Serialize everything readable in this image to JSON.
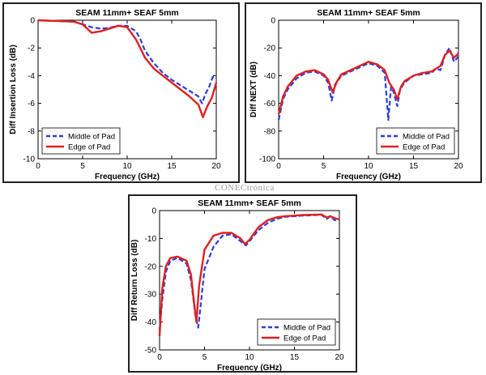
{
  "watermark": "CONECtrónica",
  "colors": {
    "middle": "#2b3fd6",
    "edge": "#e02020",
    "axis": "#000000"
  },
  "chart_data": [
    {
      "type": "line",
      "title": "SEAM 11mm+ SEAF 5mm",
      "xlabel": "Frequency (GHz)",
      "ylabel": "Diff Insertion Loss (dB)",
      "xlim": [
        0,
        20
      ],
      "ylim": [
        -10,
        0
      ],
      "xticks": [
        0,
        5,
        10,
        15,
        20
      ],
      "yticks": [
        0,
        -2,
        -4,
        -6,
        -8,
        -10
      ],
      "legend_position": "bottom-left",
      "series": [
        {
          "name": "Middle of Pad",
          "style": "dashed",
          "x": [
            0,
            2,
            4,
            5,
            6,
            7,
            8,
            9,
            10,
            11,
            11.5,
            12,
            13,
            14,
            15,
            16,
            17,
            18,
            18.4,
            18.8,
            19.2,
            19.6,
            20
          ],
          "y": [
            0,
            -0.05,
            -0.1,
            -0.3,
            -0.5,
            -0.6,
            -0.55,
            -0.4,
            -0.4,
            -0.8,
            -1.4,
            -2.2,
            -3.1,
            -3.8,
            -4.3,
            -4.7,
            -5.1,
            -5.5,
            -6.0,
            -5.3,
            -4.8,
            -4.1,
            -4.1
          ]
        },
        {
          "name": "Edge of Pad",
          "style": "solid",
          "x": [
            0,
            2,
            4,
            5,
            5.5,
            6,
            7,
            8,
            9,
            10,
            11,
            12,
            13,
            14,
            15,
            16,
            17,
            18,
            18.5,
            19,
            19.5,
            20
          ],
          "y": [
            0,
            -0.05,
            -0.1,
            -0.3,
            -0.6,
            -0.9,
            -0.8,
            -0.6,
            -0.4,
            -0.5,
            -1.4,
            -2.7,
            -3.5,
            -4.0,
            -4.5,
            -5.0,
            -5.5,
            -6.1,
            -7.0,
            -6.2,
            -5.6,
            -4.5
          ]
        }
      ]
    },
    {
      "type": "line",
      "title": "SEAM 11mm+ SEAF 5mm",
      "xlabel": "Frequency (GHz)",
      "ylabel": "Diff NEXT (dB)",
      "xlim": [
        0,
        20
      ],
      "ylim": [
        -100,
        0
      ],
      "xticks": [
        0,
        5,
        10,
        15,
        20
      ],
      "yticks": [
        0,
        -20,
        -40,
        -60,
        -80,
        -100
      ],
      "legend_position": "bottom-right",
      "series": [
        {
          "name": "Middle of Pad",
          "style": "dashed",
          "x": [
            0,
            0.5,
            1,
            2,
            3,
            4,
            5,
            5.5,
            5.9,
            6.3,
            7,
            8,
            9,
            10,
            11,
            11.8,
            12.2,
            12.5,
            12.8,
            13.2,
            13.5,
            14,
            15,
            16,
            17,
            17.5,
            18,
            18.5,
            19,
            19.5,
            20
          ],
          "y": [
            -72,
            -57,
            -50,
            -42,
            -38,
            -37,
            -40,
            -45,
            -58,
            -46,
            -40,
            -37,
            -34,
            -31,
            -33,
            -38,
            -72,
            -48,
            -52,
            -62,
            -50,
            -45,
            -40,
            -39,
            -38,
            -35,
            -36,
            -25,
            -20,
            -30,
            -26
          ]
        },
        {
          "name": "Edge of Pad",
          "style": "solid",
          "x": [
            0,
            0.5,
            1,
            2,
            3,
            4,
            5,
            5.5,
            6,
            6.5,
            7,
            8,
            9,
            10,
            11,
            11.8,
            12.3,
            12.8,
            13.2,
            13.6,
            14,
            15,
            16,
            17,
            17.5,
            18,
            18.5,
            19,
            19.5,
            20
          ],
          "y": [
            -68,
            -55,
            -48,
            -40,
            -37,
            -36,
            -39,
            -43,
            -52,
            -44,
            -39,
            -36,
            -33,
            -30,
            -32,
            -36,
            -45,
            -50,
            -57,
            -48,
            -44,
            -40,
            -38,
            -37,
            -35,
            -33,
            -25,
            -22,
            -27,
            -24
          ]
        }
      ]
    },
    {
      "type": "line",
      "title": "SEAM 11mm+ SEAF 5mm",
      "xlabel": "Frequency (GHz)",
      "ylabel": "Diff Return Loss (dB)",
      "xlim": [
        0,
        20
      ],
      "ylim": [
        -50,
        0
      ],
      "xticks": [
        0,
        5,
        10,
        15,
        20
      ],
      "yticks": [
        0,
        -10,
        -20,
        -30,
        -40,
        -50
      ],
      "legend_position": "bottom-right",
      "series": [
        {
          "name": "Middle of Pad",
          "style": "dashed",
          "x": [
            0,
            0.3,
            0.7,
            1.2,
            2,
            3,
            3.5,
            4,
            4.3,
            4.6,
            5,
            6,
            7,
            8,
            9,
            9.6,
            10,
            11,
            12,
            13,
            14,
            15,
            16,
            17,
            18,
            18.6,
            19,
            19.5,
            20
          ],
          "y": [
            -43,
            -32,
            -22,
            -18,
            -17,
            -19,
            -25,
            -38,
            -42,
            -33,
            -21,
            -13,
            -9,
            -8.5,
            -11,
            -12.5,
            -11,
            -7,
            -4.5,
            -3,
            -2.2,
            -2,
            -1.8,
            -1.7,
            -1.5,
            -3,
            -2,
            -3.5,
            -3
          ]
        },
        {
          "name": "Edge of Pad",
          "style": "solid",
          "x": [
            0,
            0.3,
            0.7,
            1.2,
            2,
            3,
            3.5,
            3.8,
            4.1,
            4.4,
            5,
            6,
            7,
            8,
            9,
            9.5,
            10,
            11,
            12,
            13,
            14,
            15,
            16,
            17,
            18,
            18.6,
            19,
            19.5,
            20
          ],
          "y": [
            -45,
            -28,
            -20,
            -17,
            -16.5,
            -18,
            -23,
            -32,
            -40,
            -27,
            -14,
            -9,
            -8,
            -8,
            -10,
            -12,
            -10.5,
            -6,
            -3.5,
            -2.4,
            -2,
            -1.8,
            -1.6,
            -1.5,
            -1.4,
            -2.5,
            -2,
            -2.8,
            -3.2
          ]
        }
      ]
    }
  ]
}
